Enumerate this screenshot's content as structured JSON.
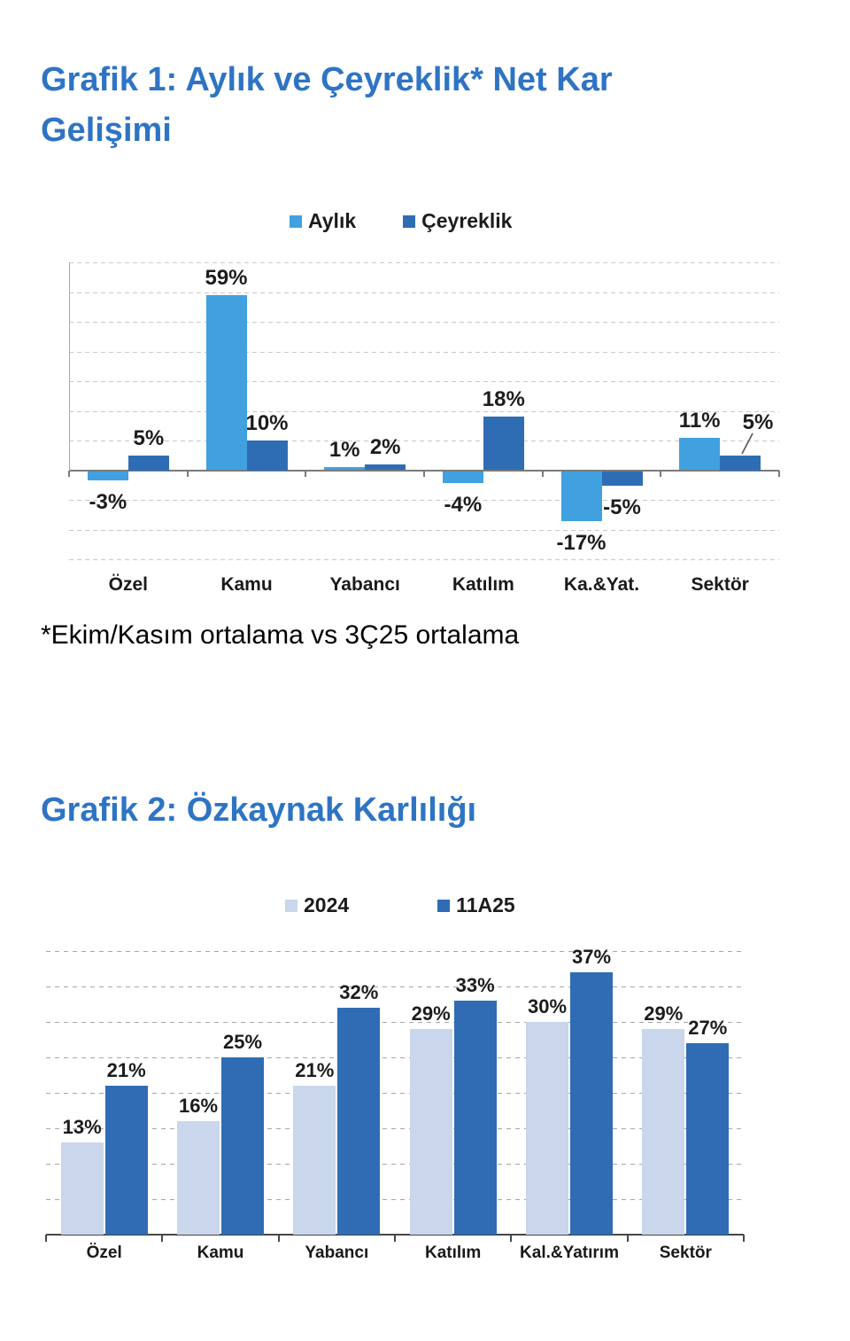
{
  "colors": {
    "title_blue": "#2E74C4",
    "aylik_light_blue": "#41A0E0",
    "ceyreklik_dark_blue": "#2E6DB4",
    "y2024_lavender": "#C9D6EB",
    "y11a25_dark_blue": "#2F6CB3"
  },
  "chart_data": [
    {
      "type": "bar",
      "title": "Grafik 1: Aylık ve Çeyreklik* Net Kar Gelişimi",
      "footnote": "*Ekim/Kasım ortalama vs 3Ç25 ortalama",
      "categories": [
        "Özel",
        "Kamu",
        "Yabancı",
        "Katılım",
        "Ka.&Yat.",
        "Sektör"
      ],
      "series": [
        {
          "name": "Aylık",
          "color": "#41A0E0",
          "values": [
            -3,
            59,
            1,
            -4,
            -17,
            11
          ]
        },
        {
          "name": "Çeyreklik",
          "color": "#2E6DB4",
          "values": [
            5,
            10,
            2,
            18,
            -5,
            5
          ]
        }
      ],
      "value_suffix": "%",
      "data_labels": true,
      "ylim": [
        -30,
        70
      ],
      "grid_step": 10,
      "grid": "dashed-horizontal",
      "legend_position": "top",
      "annotation": "5% label for Sektör Çeyreklik bar is displaced up-right with a leader line"
    },
    {
      "type": "bar",
      "title": "Grafik 2: Özkaynak Karlılığı",
      "categories": [
        "Özel",
        "Kamu",
        "Yabancı",
        "Katılım",
        "Kal.&Yatırım",
        "Sektör"
      ],
      "series": [
        {
          "name": "2024",
          "color": "#C9D6EB",
          "values": [
            13,
            16,
            21,
            29,
            30,
            29
          ]
        },
        {
          "name": "11A25",
          "color": "#2F6CB3",
          "values": [
            21,
            25,
            32,
            33,
            37,
            27
          ]
        }
      ],
      "value_suffix": "%",
      "data_labels": true,
      "ylim": [
        0,
        40
      ],
      "grid_step": 5,
      "grid": "dashed-horizontal",
      "legend_position": "top"
    }
  ]
}
